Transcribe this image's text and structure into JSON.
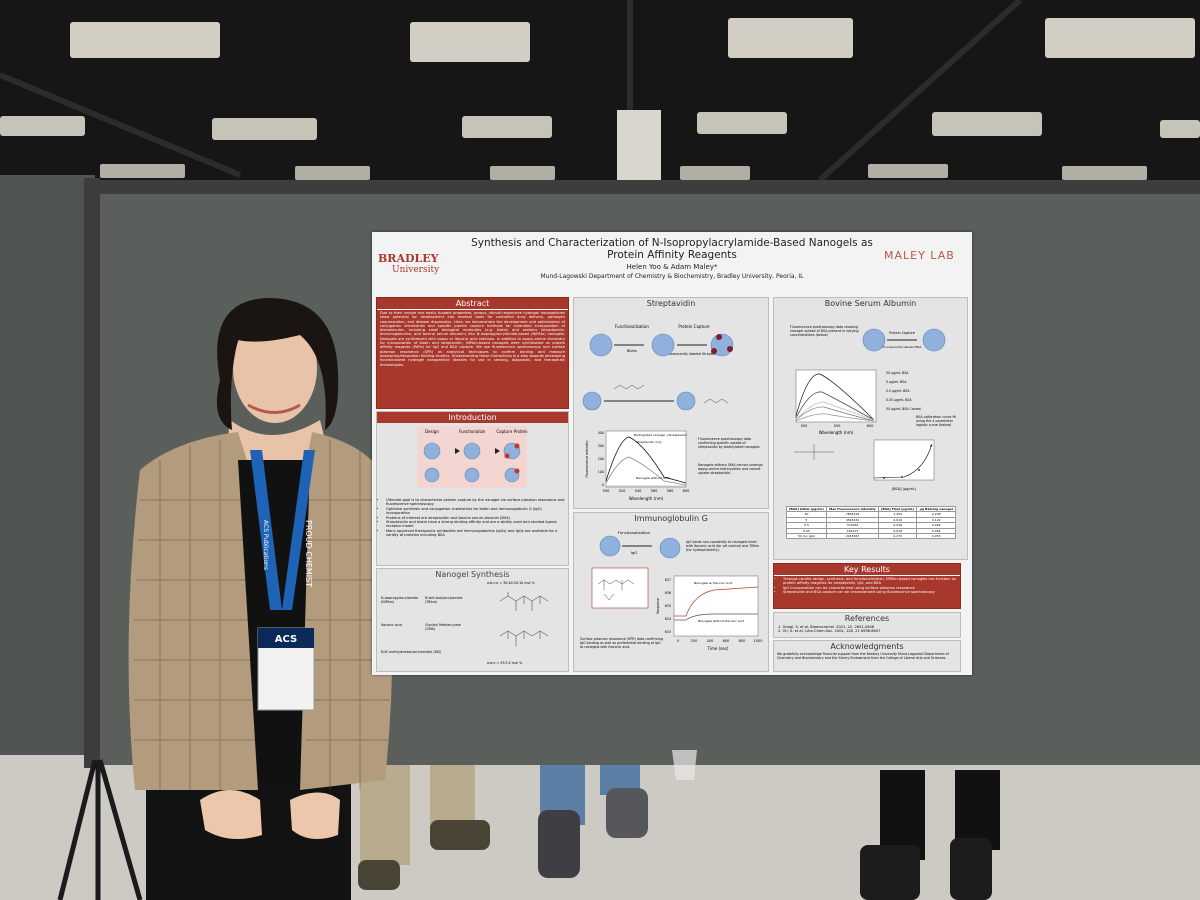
{
  "poster": {
    "logo_left": {
      "name": "BRADLEY",
      "sub": "University"
    },
    "logo_right": "MALEY LAB",
    "title_lines": [
      "Synthesis and Characterization of N-Isopropylacrylamide-Based Nanogels as",
      "Protein Affinity Reagents"
    ],
    "authors": "Helen Yoo  & Adam Maley*",
    "affiliation": "Mund-Lagowski Department of Chemistry & Biochemistry, Bradley University, Peoria, IL",
    "abstract": {
      "heading": "Abstract",
      "text": "Due to their unique and easily tunable properties, porous, stimuli-responsive hydrogel nanoparticles show potential for development into medical tools for controlled drug delivery, pathogen sequestration, and disease diagnostics. Here, we demonstrate the development and optimization of conjugation chemistries and specific protein capture methods for controlled incorporation of biomolecules, including small biological molecules (e.g. biotin) and proteins (streptavidin, immunoglobulins, and bovine serum albumin) into N-isopropylacrylamide-based (NIPAm) nanogels. Nanogels are synthesized with epoxy or itaconic acid residues. In addition to epoxy-amine chemistry for incorporation of biotin and streptavidin, NIPAm-based nanogels were synthesized as protein affinity reagents (PARs) for IgG and BSA capture. We use fluorescence spectroscopy and surface plasmon resonance (SPR) as analytical techniques to confirm binding and measure absorption/desorption binding kinetics. Understanding these interactions is a step towards developing functionalized hydrogel nanoparticle libraries for use in sensing, diagnostic, and therapeutic technologies."
    },
    "introduction": {
      "heading": "Introduction",
      "steps": [
        "Design",
        "Functionalize",
        "Capture Protein"
      ],
      "bullets": [
        "Ultimate goal is to characterize protein capture by the nanogel via surface plasmon resonance and fluorescence spectroscopy",
        "Optimize synthesis and conjugation chemistries for biotin and immunoglobulin G (IgG) incorporation",
        "Proteins of interest are streptavidin and bovine serum albumin (BSA)",
        "Streptavidin and biotin have a strong binding affinity and are a widely used and studied ligand-receptor model",
        "Many approved therapeutic antibodies are immunoglobulins (IgGs) and IgGs are available for a variety of proteins including BSA"
      ]
    },
    "nanogel_synthesis": {
      "heading": "Nanogel Synthesis",
      "ratios": [
        "a:b:c:e = 30:40:20:10 mol %",
        "a:b:e = 93:5:2 mol %"
      ],
      "labels": [
        "N-isopropylacrylamide (NIPAm)",
        "N-tert-butylacrylamide (TBAm)",
        "Itaconic acid",
        "Glycidyl Methacrylate (GMA)",
        "N,N'-methylenebis(acrylamide) (BIS)"
      ]
    },
    "streptavidin": {
      "heading": "Streptavidin",
      "diagram_labels": [
        "Functionalization",
        "Protein Capture",
        "Biotin",
        "Fluorescently labeled Streptavidin"
      ],
      "legend": [
        "Biotinylated nanogel +Streptavidin",
        "Streptavidin only",
        "Nanogels without GMA"
      ],
      "x_label": "Wavelength (nm)",
      "y_label": "Fluorescence Intensity",
      "xticks": [
        "500",
        "520",
        "540",
        "560",
        "580",
        "600"
      ],
      "yticks": [
        "400",
        "300",
        "200",
        "100",
        "0"
      ],
      "notes": [
        "Fluorescence spectroscopy data confirming specific uptake of streptavidin by biotinylated nanogels.",
        "Nanogels without GMA cannot undergo epoxy-amine biotinylation and cannot uptake streptavidin."
      ]
    },
    "immunoglobulin": {
      "heading": "Immunoglobulin G",
      "diagram_labels": [
        "Functionalization",
        "IgG"
      ],
      "note": "IgG binds non-covalently to nanogels lined with itaconic acid (for pH control) and TBAm (for hydrophobicity).",
      "legend": [
        "Nanogels w/ Itaconic Acid",
        "Nanogels without Itaconic Acid"
      ],
      "x_label": "Time (sec)",
      "y_label": "Response",
      "xticks": [
        "0",
        "200",
        "400",
        "600",
        "800",
        "1000"
      ],
      "yticks": [
        "637",
        "636",
        "635",
        "634",
        "633"
      ],
      "caption": "Surface plasmon resonance (SPR) data confirming IgG binding as well as preferential binding of IgG to nanogels with itaconic acid."
    },
    "bsa": {
      "heading": "Bovine Serum Albumin",
      "intro": "Fluorescence spectroscopy data showing nanogel uptake of BSA present in varying concentrations (below)",
      "diagram_labels": [
        "Protein Capture",
        "Fluorescently labeled BSA"
      ],
      "legend": [
        "50 µg/mL BSA",
        "5 µg/mL BSA",
        "0.5 µg/mL BSA",
        "0.05 µg/mL BSA",
        "50 µg/mL BSA Control"
      ],
      "x_label": "Wavelength (nm)",
      "xticks": [
        "500",
        "550",
        "600"
      ],
      "calibration_note": "BSA calibration curve fit using the 4 parameter logistic curve (below)",
      "calibration_x_label": "[BSA] (µg/mL)",
      "table": {
        "header": [
          "[BSA] Initial (µg/mL)",
          "Max Fluorescence Intensity",
          "[BSA] Final (µg/mL)",
          "µg BSA/mg nanogel"
        ],
        "rows": [
          [
            "50",
            "7835416",
            "1.204",
            "0.238"
          ],
          [
            "5",
            "4593232",
            "0.616",
            "0.122"
          ],
          [
            "0.5",
            "374959",
            "0.046",
            "0.009"
          ],
          [
            "0.05",
            "184113",
            "0.018",
            "0.004"
          ],
          [
            "50 (no IgG)",
            "2243567",
            "0.270",
            "0.053"
          ]
        ]
      }
    },
    "key_results": {
      "heading": "Key Results",
      "bullets": [
        "Through careful design, synthesis, and functionalization, NIPAm-based nanogels can function as protein affinity reagents for streptavidin, IgG, and BSA",
        "IgG incorporation can be characterized using surface plasmon resonance",
        "Streptavidin and BSA capture can be characterized using fluorescence spectroscopy"
      ]
    },
    "references": {
      "heading": "References",
      "items": [
        "1. Onogi, S. et al. Biomacromol. 2021, 22, 2641-2648",
        "2. Oh, K. et al. J.Am.Chem.Soc. 2004, 126, 21 6598-6607"
      ]
    },
    "acknowledgments": {
      "heading": "Acknowledgments",
      "text": "We gratefully acknowledge financial support from the Bradley University Mund-Lagowski Department of Chemistry and Biochemistry and the Sherry Endowment from the College of Liberal Arts and Sciences."
    }
  },
  "badge": {
    "lanyard": "PROUD CHEMIST",
    "lanyard_brand": "ACS Publications",
    "badge_logo": "ACS"
  }
}
